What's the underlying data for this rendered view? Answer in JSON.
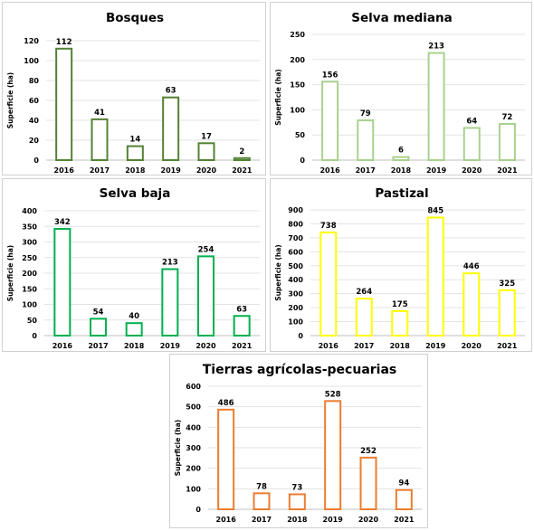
{
  "chart_data": [
    {
      "type": "bar",
      "title": "Bosques",
      "ylabel": "Superficie (ha)",
      "categories": [
        "2016",
        "2017",
        "2018",
        "2019",
        "2020",
        "2021"
      ],
      "values": [
        112,
        41,
        14,
        63,
        17,
        2
      ],
      "ylim": [
        0,
        120
      ],
      "yticks": [
        0,
        20,
        40,
        60,
        80,
        100,
        120
      ],
      "color": "#548235",
      "grid": true
    },
    {
      "type": "bar",
      "title": "Selva mediana",
      "ylabel": "Superficie (ha)",
      "categories": [
        "2016",
        "2017",
        "2018",
        "2019",
        "2020",
        "2021"
      ],
      "values": [
        156,
        79,
        6,
        213,
        64,
        72
      ],
      "ylim": [
        0,
        250
      ],
      "yticks": [
        0,
        50,
        100,
        150,
        200,
        250
      ],
      "color": "#a9d18e",
      "grid": true
    },
    {
      "type": "bar",
      "title": "Selva baja",
      "ylabel": "Superficie (ha)",
      "categories": [
        "2016",
        "2017",
        "2018",
        "2019",
        "2020",
        "2021"
      ],
      "values": [
        342,
        54,
        40,
        213,
        254,
        63
      ],
      "ylim": [
        0,
        400
      ],
      "yticks": [
        0,
        50,
        100,
        150,
        200,
        250,
        300,
        350,
        400
      ],
      "color": "#00b050",
      "grid": true
    },
    {
      "type": "bar",
      "title": "Pastizal",
      "ylabel": "Superficie (ha)",
      "categories": [
        "2016",
        "2017",
        "2018",
        "2019",
        "2020",
        "2021"
      ],
      "values": [
        738,
        264,
        175,
        845,
        446,
        325
      ],
      "ylim": [
        0,
        900
      ],
      "yticks": [
        0,
        100,
        200,
        300,
        400,
        500,
        600,
        700,
        800,
        900
      ],
      "color": "#ffff00",
      "grid": true
    },
    {
      "type": "bar",
      "title": "Tierras agrícolas-pecuarias",
      "ylabel": "Superficie (ha)",
      "categories": [
        "2016",
        "2017",
        "2018",
        "2019",
        "2020",
        "2021"
      ],
      "values": [
        486,
        78,
        73,
        528,
        252,
        94
      ],
      "ylim": [
        0,
        600
      ],
      "yticks": [
        0,
        100,
        200,
        300,
        400,
        500,
        600
      ],
      "color": "#ed7d31",
      "grid": true
    }
  ]
}
